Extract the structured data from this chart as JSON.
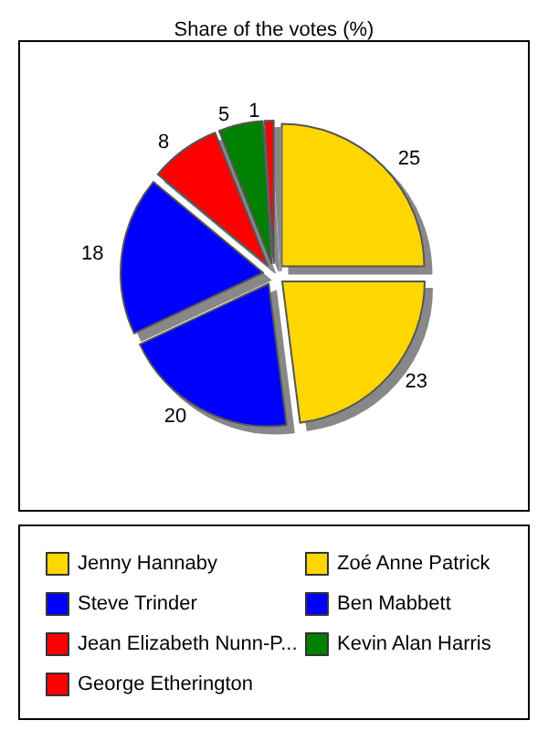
{
  "chart_data": {
    "type": "pie",
    "title": "Share of the votes (%)",
    "categories": [
      "Jenny Hannaby",
      "Zoé Anne Patrick",
      "Steve Trinder",
      "Ben Mabbett",
      "Jean Elizabeth Nunn-P...",
      "Kevin Alan Harris",
      "George Etherington"
    ],
    "values": [
      25,
      23,
      20,
      18,
      8,
      5,
      1
    ],
    "colors": [
      "#ffd700",
      "#ffd700",
      "#0000ff",
      "#0000ff",
      "#ff0000",
      "#008000",
      "#ff0000"
    ],
    "data_labels": true,
    "legend": "bottom"
  }
}
